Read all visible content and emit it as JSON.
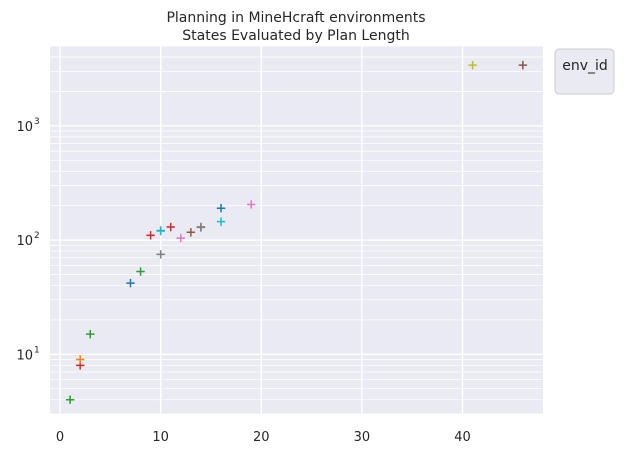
{
  "chart_data": {
    "type": "scatter",
    "title": "Planning in MineHcraft environments",
    "subtitle": "States Evaluated by Plan Length",
    "xlabel": "",
    "ylabel": "",
    "xlim": [
      -1,
      48
    ],
    "ylim": [
      3.0,
      5000
    ],
    "yscale": "log",
    "x_ticks": [
      "0",
      "10",
      "20",
      "30",
      "40"
    ],
    "y_ticks": [
      "10",
      "10",
      "10"
    ],
    "y_tick_exponents": [
      "1",
      "2",
      "3"
    ],
    "grid": true,
    "marker": "+",
    "legend": {
      "title": "env_id",
      "placement": "outside-top-right",
      "entries": []
    },
    "points": [
      {
        "x": 1,
        "y": 4,
        "color": "#bcbd22"
      },
      {
        "x": 1,
        "y": 4,
        "color": "#2ca02c"
      },
      {
        "x": 2,
        "y": 8,
        "color": "#d62728"
      },
      {
        "x": 2,
        "y": 9,
        "color": "#ff7f0e"
      },
      {
        "x": 3,
        "y": 15,
        "color": "#2ca02c"
      },
      {
        "x": 7,
        "y": 42,
        "color": "#1f77b4"
      },
      {
        "x": 8,
        "y": 53,
        "color": "#2ca02c"
      },
      {
        "x": 9,
        "y": 110,
        "color": "#d62728"
      },
      {
        "x": 10,
        "y": 121,
        "color": "#1f77b4"
      },
      {
        "x": 10,
        "y": 120,
        "color": "#17becf"
      },
      {
        "x": 10,
        "y": 75,
        "color": "#7f7f7f"
      },
      {
        "x": 11,
        "y": 130,
        "color": "#d62728"
      },
      {
        "x": 12,
        "y": 104,
        "color": "#e377c2"
      },
      {
        "x": 13,
        "y": 117,
        "color": "#8c564b"
      },
      {
        "x": 14,
        "y": 130,
        "color": "#8c564b"
      },
      {
        "x": 14,
        "y": 129,
        "color": "#7f7f7f"
      },
      {
        "x": 16,
        "y": 190,
        "color": "#1f77b4"
      },
      {
        "x": 16,
        "y": 145,
        "color": "#17becf"
      },
      {
        "x": 19,
        "y": 205,
        "color": "#e377c2"
      },
      {
        "x": 41,
        "y": 3400,
        "color": "#bcbd22"
      },
      {
        "x": 46,
        "y": 3400,
        "color": "#8c564b"
      }
    ]
  }
}
